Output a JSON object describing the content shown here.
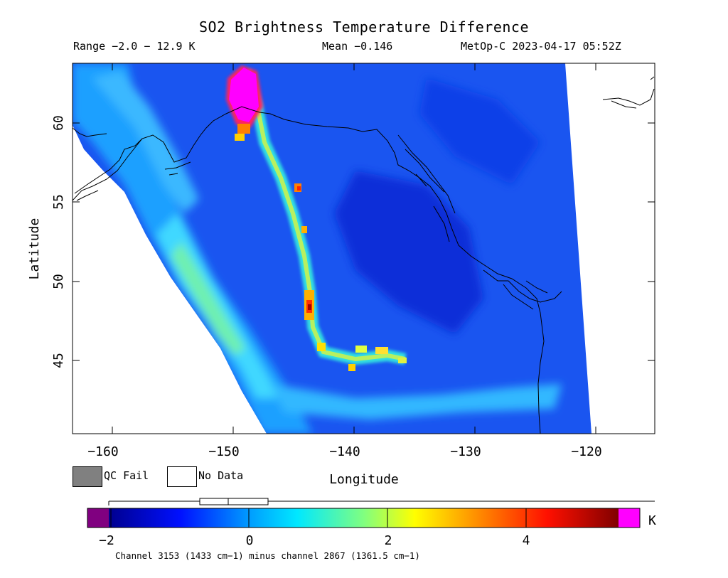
{
  "title": "SO2 Brightness Temperature Difference",
  "header": {
    "range": "Range −2.0 − 12.9 K",
    "mean": "Mean −0.146",
    "satellite": "MetOp-C 2023-04-17 05:52Z"
  },
  "axes": {
    "xlabel": "Longitude",
    "ylabel": "Latitude",
    "x_ticks": [
      "−160",
      "−150",
      "−140",
      "−130",
      "−120"
    ],
    "y_ticks": [
      "45",
      "50",
      "55",
      "60"
    ],
    "x_range": [
      -162.5,
      -116
    ],
    "y_range": [
      40.5,
      64
    ]
  },
  "legend": {
    "qc_fail": "QC Fail",
    "no_data": "No Data",
    "qc_fail_color": "#808080",
    "no_data_color": "#ffffff"
  },
  "colorbar": {
    "ticks": [
      "−2",
      "0",
      "2",
      "4"
    ],
    "unit": "K",
    "range": [
      -2.0,
      5.4
    ],
    "underflow_color": "#800080",
    "overflow_color": "#ff00ff"
  },
  "caption": "Channel 3153 (1433 cm−1) minus channel 2867 (1361.5 cm−1)"
}
